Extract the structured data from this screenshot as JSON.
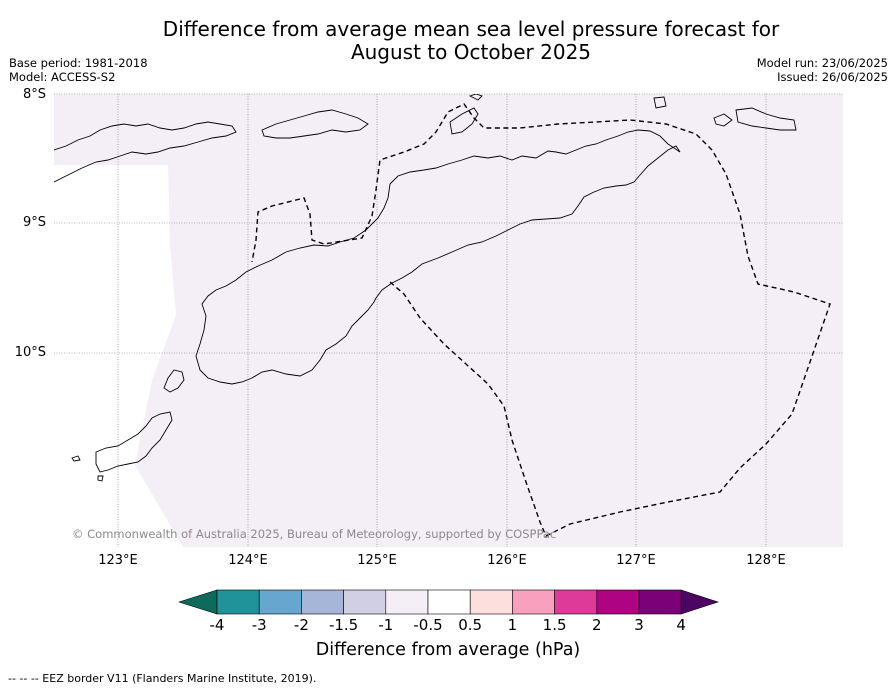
{
  "title_line1": "Difference from average mean sea level pressure forecast for",
  "title_line2": "August to October 2025",
  "base_period": "Base period: 1981-2018",
  "model": "Model: ACCESS-S2",
  "model_run": "Model run: 23/06/2025",
  "issued": "Issued: 26/06/2025",
  "lat_labels": [
    "8°S",
    "9°S",
    "10°S"
  ],
  "lon_labels": [
    "123°E",
    "124°E",
    "125°E",
    "126°E",
    "127°E",
    "128°E"
  ],
  "copyright": "© Commonwealth of Australia 2025, Bureau of Meteorology, supported by COSPPac",
  "colorbar": {
    "title": "Difference from average (hPa)",
    "tick_labels": [
      "-4",
      "-3",
      "-2",
      "-1.5",
      "-1",
      "-0.5",
      "0.5",
      "1",
      "1.5",
      "2",
      "3",
      "4"
    ],
    "colors": [
      "#0d6b5c",
      "#1f9399",
      "#67a6cf",
      "#a5b6d8",
      "#d0cfe4",
      "#f4eef7",
      "#ffffff",
      "#fde0de",
      "#f9a0bf",
      "#de3a99",
      "#ae0382",
      "#7a0177",
      "#4c0563"
    ]
  },
  "footnote": "-- -- -- EEZ border V11 (Flanders Marine Institute, 2019).",
  "map": {
    "field_color": "#f4eef7",
    "field_value_range_hPa": "-1 to -0.5"
  }
}
